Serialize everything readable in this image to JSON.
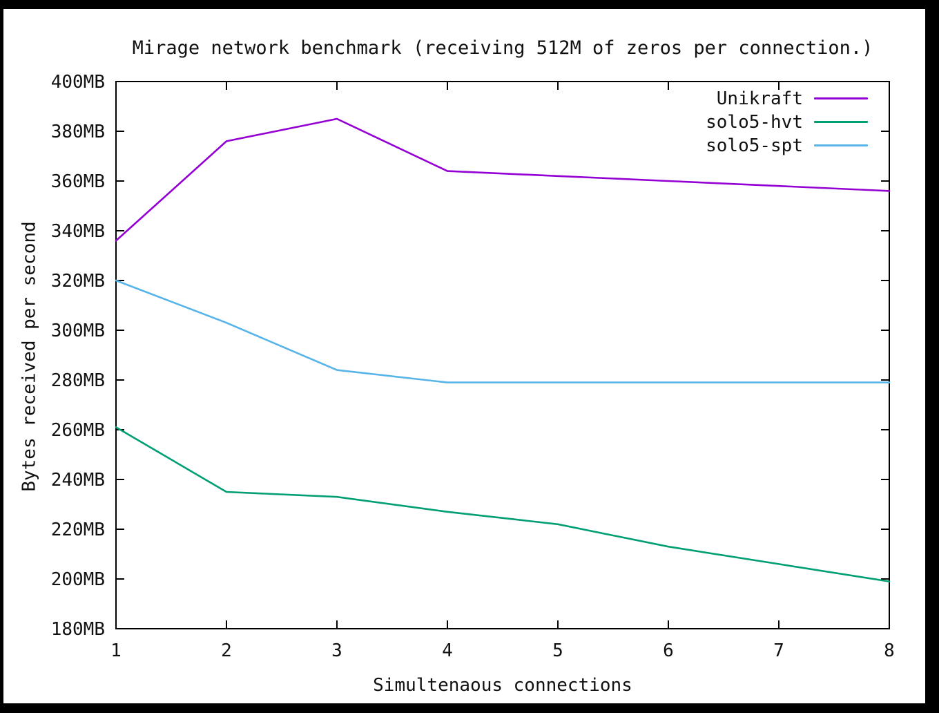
{
  "window": {
    "frame_background": "#000000",
    "canvas_background": "#ffffff"
  },
  "chart_data": {
    "type": "line",
    "title": "Mirage network benchmark (receiving 512M of zeros per connection.)",
    "xlabel": "Simultenaous connections",
    "ylabel": "Bytes received per second",
    "xlim": [
      1,
      8
    ],
    "ylim": [
      180,
      400
    ],
    "x": [
      1,
      2,
      3,
      4,
      5,
      6,
      7,
      8
    ],
    "x_tick_labels": [
      "1",
      "2",
      "3",
      "4",
      "5",
      "6",
      "7",
      "8"
    ],
    "y_ticks": [
      180,
      200,
      220,
      240,
      260,
      280,
      300,
      320,
      340,
      360,
      380,
      400
    ],
    "y_tick_labels": [
      "180MB",
      "200MB",
      "220MB",
      "240MB",
      "260MB",
      "280MB",
      "300MB",
      "320MB",
      "340MB",
      "360MB",
      "380MB",
      "400MB"
    ],
    "grid": false,
    "legend_position": "top-right-inside",
    "axis_color": "#000000",
    "text_color": "#111111",
    "series": [
      {
        "name": "Unikraft",
        "color": "#9400d3",
        "values": [
          336,
          376,
          385,
          364,
          362,
          360,
          358,
          356
        ]
      },
      {
        "name": "solo5-hvt",
        "color": "#009e73",
        "values": [
          261,
          235,
          233,
          227,
          222,
          213,
          206,
          199
        ]
      },
      {
        "name": "solo5-spt",
        "color": "#56b4e9",
        "values": [
          320,
          303,
          284,
          279,
          279,
          279,
          279,
          279
        ]
      }
    ]
  }
}
